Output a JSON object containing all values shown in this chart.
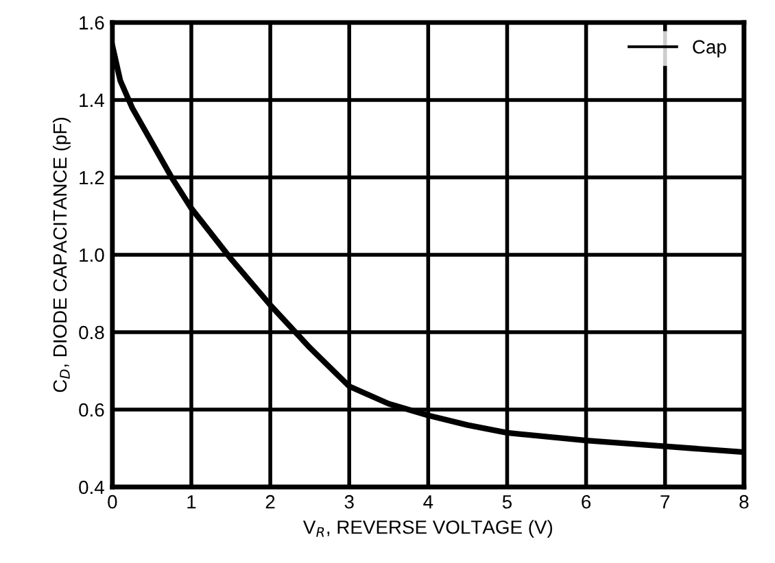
{
  "chart_data": {
    "type": "line",
    "xlabel": "V$_{R}$, REVERSE VOLTAGE (V)",
    "ylabel": "C$_{D}$, DIODE CAPACITANCE (pF)",
    "x": [
      0,
      0.1,
      0.25,
      0.5,
      0.75,
      1,
      1.5,
      2,
      2.5,
      3,
      3.5,
      4,
      4.5,
      5,
      6,
      7,
      8
    ],
    "series": [
      {
        "name": "Cap",
        "color": "#000000",
        "values": [
          1.54,
          1.45,
          1.38,
          1.29,
          1.2,
          1.12,
          0.99,
          0.87,
          0.76,
          0.66,
          0.615,
          0.585,
          0.56,
          0.54,
          0.52,
          0.505,
          0.49
        ]
      }
    ],
    "xlim": [
      0,
      8
    ],
    "ylim": [
      0.4,
      1.6
    ],
    "xticks": [
      0,
      1,
      2,
      3,
      4,
      5,
      6,
      7,
      8
    ],
    "yticks": [
      {
        "value": 0.4,
        "label": "0.4"
      },
      {
        "value": 0.6,
        "label": "0.6"
      },
      {
        "value": 0.8,
        "label": "0.8"
      },
      {
        "value": 1.0,
        "label": "1.0"
      },
      {
        "value": 1.2,
        "label": "1.2"
      },
      {
        "value": 1.4,
        "label": "1.4"
      },
      {
        "value": 1.6,
        "label": "1.6"
      }
    ],
    "grid": true,
    "legend": "top right",
    "marker": "none",
    "line_style": "solid"
  }
}
